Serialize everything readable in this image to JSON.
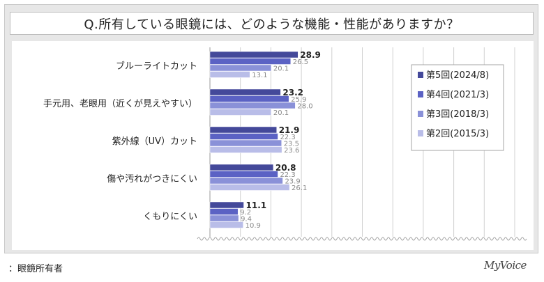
{
  "title": "Q.所有している眼鏡には、どのような機能・性能がありますか？",
  "footnote": "：眼鏡所有者",
  "brand": "MyVoice",
  "chart_data": {
    "type": "bar",
    "orientation": "horizontal",
    "categories": [
      "ブルーライトカット",
      "手元用、老眼用（近くが見えやすい）",
      "紫外線（UV）カット",
      "傷や汚れがつきにくい",
      "くもりにくい"
    ],
    "series": [
      {
        "name": "第5回(2024/8)",
        "color": "#44499a",
        "values": [
          28.9,
          23.2,
          21.9,
          20.8,
          11.1
        ]
      },
      {
        "name": "第4回(2021/3)",
        "color": "#5b62c4",
        "values": [
          26.5,
          25.9,
          22.3,
          22.3,
          9.2
        ]
      },
      {
        "name": "第3回(2018/3)",
        "color": "#8a91d8",
        "values": [
          20.1,
          28.0,
          23.5,
          23.9,
          9.4
        ]
      },
      {
        "name": "第2回(2015/3)",
        "color": "#b9bde8",
        "values": [
          13.1,
          20.1,
          23.6,
          26.1,
          10.9
        ]
      }
    ],
    "legend_position": "right",
    "grid": true
  }
}
